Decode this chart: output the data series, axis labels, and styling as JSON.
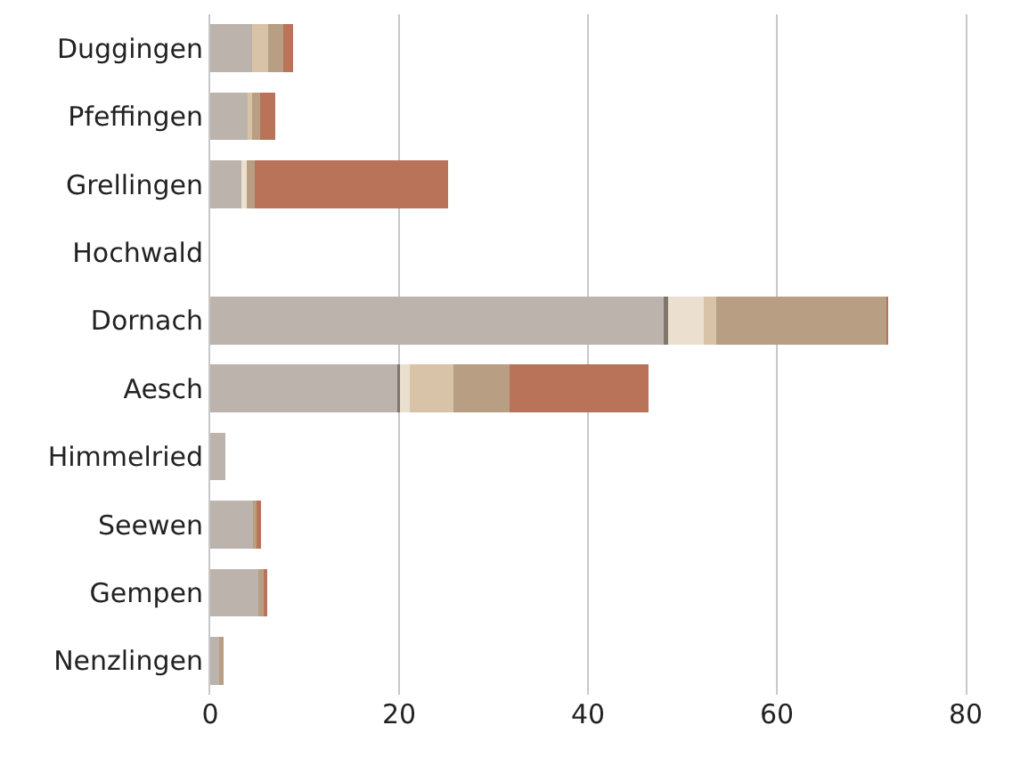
{
  "chart_data": {
    "type": "bar",
    "orientation": "horizontal",
    "stacked": true,
    "grid": "x",
    "categories": [
      "Duggingen",
      "Pfeffingen",
      "Grellingen",
      "Hochwald",
      "Dornach",
      "Aesch",
      "Himmelried",
      "Seewen",
      "Gempen",
      "Nenzlingen"
    ],
    "xlim": [
      0,
      80
    ],
    "xticks": [
      0,
      20,
      40,
      60,
      80
    ],
    "series": [
      {
        "color": "#bbb3ac",
        "values": [
          4.4,
          4.0,
          3.3,
          0,
          48.0,
          19.8,
          1.6,
          4.5,
          5.1,
          0.9
        ]
      },
      {
        "color": "#7f776e",
        "values": [
          0,
          0,
          0,
          0,
          0.5,
          0.3,
          0,
          0,
          0,
          0
        ]
      },
      {
        "color": "#ebdfcf",
        "values": [
          0,
          0,
          0.6,
          0,
          3.8,
          1.0,
          0,
          0,
          0,
          0
        ]
      },
      {
        "color": "#d8c3a8",
        "values": [
          1.7,
          0.4,
          0,
          0,
          1.3,
          4.7,
          0,
          0,
          0,
          0
        ]
      },
      {
        "color": "#b89e83",
        "values": [
          1.6,
          0.9,
          0.8,
          0,
          18.0,
          5.9,
          0,
          0.4,
          0.6,
          0.5
        ]
      },
      {
        "color": "#b87358",
        "values": [
          1.1,
          1.6,
          20.5,
          0,
          0.2,
          14.7,
          0,
          0.5,
          0.3,
          0
        ]
      }
    ]
  }
}
